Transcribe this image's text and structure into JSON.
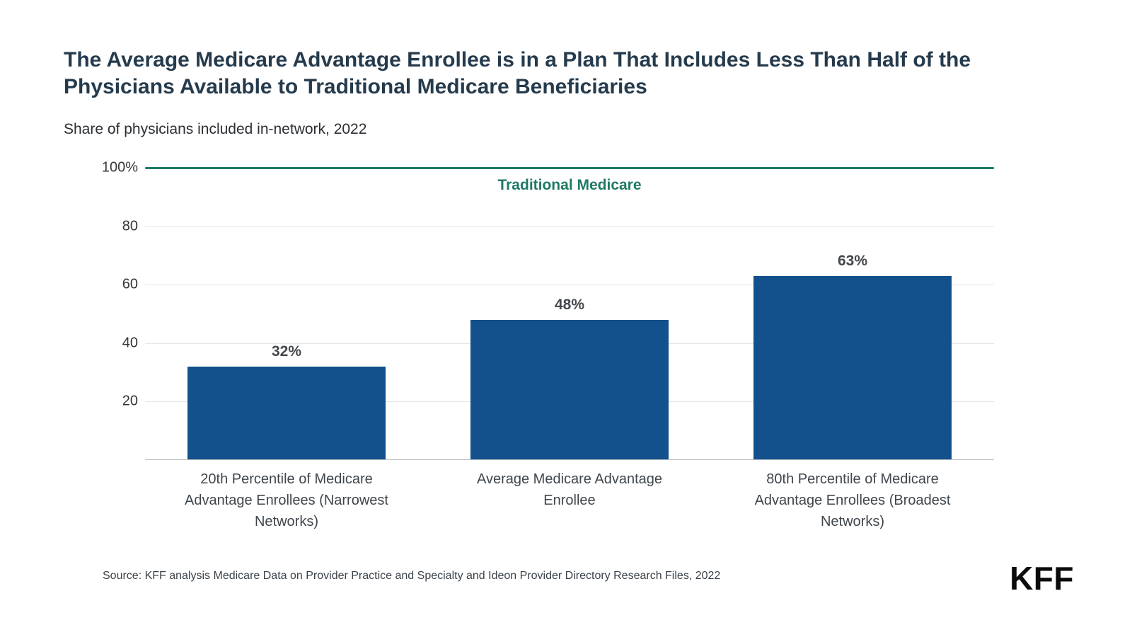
{
  "page": {
    "source": "Source: KFF analysis Medicare Data on Provider Practice and Specialty and Ideon Provider Directory Research Files, 2022",
    "logo": "KFF"
  },
  "chart_data": {
    "type": "bar",
    "title": "The Average Medicare Advantage Enrollee is in a Plan That Includes Less Than Half of the Physicians Available to Traditional Medicare Beneficiaries",
    "subtitle": "Share of physicians included in-network, 2022",
    "categories": [
      "20th Percentile of Medicare Advantage Enrollees (Narrowest Networks)",
      "Average Medicare Advantage Enrollee",
      "80th Percentile of Medicare Advantage Enrollees (Broadest Networks)"
    ],
    "values": [
      32,
      48,
      63
    ],
    "value_labels": [
      "32%",
      "48%",
      "63%"
    ],
    "reference_line": {
      "value": 100,
      "label": "Traditional Medicare",
      "color": "#1e7a64"
    },
    "yticks": [
      {
        "value": 100,
        "label": "100%"
      },
      {
        "value": 80,
        "label": "80"
      },
      {
        "value": 60,
        "label": "60"
      },
      {
        "value": 40,
        "label": "40"
      },
      {
        "value": 20,
        "label": "20"
      }
    ],
    "ylim": [
      0,
      100
    ],
    "grid": true,
    "legend": "none",
    "bar_color": "#12518c",
    "xlabel": "",
    "ylabel": "Share of physicians included in-network"
  }
}
